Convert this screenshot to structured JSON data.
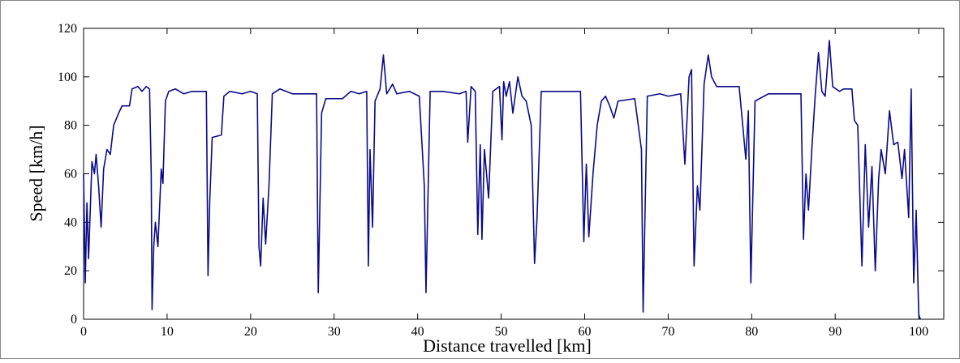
{
  "chart_data": {
    "type": "line",
    "xlabel": "Distance travelled [km]",
    "ylabel": "Speed [km/h]",
    "color": "#0a0a8c",
    "xlim": [
      0,
      103
    ],
    "ylim": [
      0,
      120
    ],
    "xticks": [
      0,
      10,
      20,
      30,
      40,
      50,
      60,
      70,
      80,
      90,
      100
    ],
    "yticks": [
      0,
      20,
      40,
      60,
      80,
      100,
      120
    ],
    "grid": false,
    "x": [
      0,
      0.2,
      0.4,
      0.6,
      0.8,
      1.0,
      1.3,
      1.5,
      1.8,
      2.1,
      2.4,
      2.8,
      3.2,
      3.6,
      4.2,
      4.6,
      5.5,
      5.8,
      6.5,
      7,
      7.5,
      7.9,
      8.1,
      8.2,
      8.4,
      8.6,
      8.9,
      9.3,
      9.5,
      9.8,
      10.2,
      11,
      12,
      13,
      14,
      14.7,
      14.9,
      15.1,
      15.4,
      16.5,
      16.8,
      17.5,
      19,
      20,
      20.8,
      21.0,
      21.2,
      21.5,
      21.8,
      22.2,
      22.6,
      23.5,
      25,
      27,
      27.9,
      28.1,
      28.5,
      29,
      31,
      32,
      33,
      33.9,
      34.1,
      34.3,
      34.6,
      34.9,
      35.5,
      35.9,
      36.3,
      37,
      37.5,
      39,
      40.2,
      40.8,
      41.0,
      41.5,
      43,
      45,
      45.8,
      46,
      46.4,
      46.9,
      47.2,
      47.5,
      47.7,
      48,
      48.5,
      49,
      49.8,
      50.1,
      50.3,
      50.6,
      51,
      51.4,
      52,
      52.5,
      53,
      53.6,
      54,
      54.3,
      54.8,
      56,
      58,
      59.5,
      59.9,
      60.2,
      60.5,
      61,
      61.5,
      62,
      62.5,
      63,
      63.5,
      64,
      66,
      66.8,
      67.0,
      67.5,
      69,
      70,
      71.5,
      72,
      72.5,
      72.8,
      73.1,
      73.5,
      73.8,
      74.3,
      74.8,
      75.2,
      75.8,
      77,
      78.5,
      79.3,
      79.6,
      79.9,
      80.4,
      82,
      84,
      85.9,
      86.2,
      86.5,
      86.8,
      87.2,
      87.6,
      88,
      88.4,
      88.8,
      89.3,
      89.7,
      90.5,
      91,
      92,
      92.3,
      92.7,
      93.2,
      93.6,
      94,
      94.4,
      94.8,
      95.2,
      95.5,
      96,
      96.5,
      97,
      97.5,
      98,
      98.3,
      98.8,
      99.1,
      99.4,
      99.7,
      100,
      100.2
    ],
    "values": [
      60,
      15,
      48,
      25,
      45,
      65,
      60,
      68,
      55,
      38,
      62,
      70,
      68,
      80,
      85,
      88,
      88,
      95,
      96,
      94,
      96,
      95,
      60,
      4,
      30,
      40,
      30,
      62,
      56,
      90,
      94,
      95,
      93,
      94,
      94,
      94,
      18,
      48,
      75,
      76,
      92,
      94,
      93,
      94,
      93,
      30,
      22,
      50,
      31,
      55,
      93,
      95,
      93,
      93,
      93,
      11,
      85,
      91,
      91,
      94,
      93,
      94,
      22,
      70,
      38,
      90,
      95,
      109,
      93,
      97,
      93,
      94,
      92,
      55,
      11,
      94,
      94,
      93,
      94,
      73,
      96,
      94,
      35,
      72,
      33,
      70,
      50,
      94,
      96,
      74,
      98,
      92,
      98,
      85,
      100,
      92,
      90,
      80,
      23,
      42,
      94,
      94,
      94,
      94,
      32,
      64,
      34,
      60,
      80,
      90,
      92,
      88,
      83,
      90,
      91,
      70,
      3,
      92,
      93,
      92,
      93,
      64,
      100,
      103,
      22,
      55,
      45,
      97,
      109,
      100,
      96,
      96,
      96,
      66,
      86,
      15,
      90,
      93,
      93,
      93,
      33,
      60,
      45,
      70,
      92,
      110,
      94,
      92,
      115,
      96,
      94,
      95,
      95,
      82,
      80,
      22,
      72,
      38,
      63,
      20,
      58,
      70,
      60,
      86,
      72,
      73,
      58,
      70,
      42,
      95,
      15,
      45,
      2,
      0
    ]
  }
}
